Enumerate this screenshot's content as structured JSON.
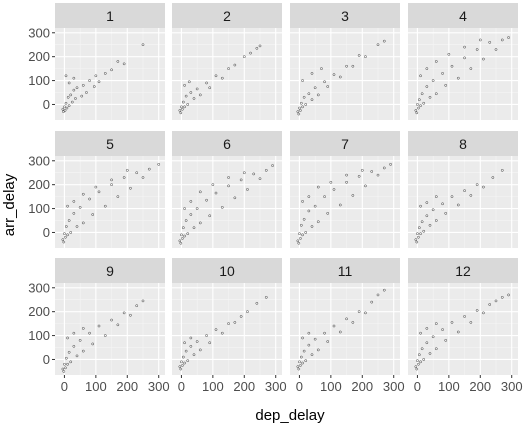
{
  "chart_data": {
    "type": "scatter",
    "facet_by": "month",
    "panels": [
      "1",
      "2",
      "3",
      "4",
      "5",
      "6",
      "7",
      "8",
      "9",
      "10",
      "11",
      "12"
    ],
    "xlabel": "dep_delay",
    "ylabel": "arr_delay",
    "xlim": [
      -30,
      320
    ],
    "ylim": [
      -65,
      320
    ],
    "x_ticks": [
      0,
      100,
      200,
      300
    ],
    "y_ticks": [
      0,
      100,
      200,
      300
    ],
    "grid": true,
    "colors": {
      "panel_background": "#ebebeb",
      "strip_background": "#d9d9d9",
      "grid_major": "#ffffff",
      "grid_minor": "#f5f5f5",
      "point": "#000000"
    },
    "series": [
      {
        "name": "1",
        "points": [
          [
            -5,
            -20
          ],
          [
            -3,
            -30
          ],
          [
            0,
            -10
          ],
          [
            2,
            -25
          ],
          [
            5,
            5
          ],
          [
            8,
            -15
          ],
          [
            12,
            30
          ],
          [
            15,
            -5
          ],
          [
            20,
            40
          ],
          [
            25,
            10
          ],
          [
            30,
            60
          ],
          [
            35,
            25
          ],
          [
            40,
            70
          ],
          [
            55,
            35
          ],
          [
            60,
            80
          ],
          [
            70,
            50
          ],
          [
            80,
            100
          ],
          [
            95,
            75
          ],
          [
            100,
            120
          ],
          [
            110,
            95
          ],
          [
            130,
            130
          ],
          [
            150,
            145
          ],
          [
            170,
            180
          ],
          [
            190,
            170
          ],
          [
            5,
            120
          ],
          [
            15,
            90
          ],
          [
            30,
            110
          ],
          [
            250,
            250
          ]
        ]
      },
      {
        "name": "2",
        "points": [
          [
            -5,
            -25
          ],
          [
            -2,
            -35
          ],
          [
            0,
            -10
          ],
          [
            3,
            -20
          ],
          [
            6,
            10
          ],
          [
            10,
            -10
          ],
          [
            15,
            35
          ],
          [
            20,
            0
          ],
          [
            30,
            50
          ],
          [
            40,
            25
          ],
          [
            50,
            65
          ],
          [
            60,
            40
          ],
          [
            80,
            90
          ],
          [
            90,
            70
          ],
          [
            110,
            120
          ],
          [
            130,
            110
          ],
          [
            150,
            150
          ],
          [
            170,
            165
          ],
          [
            200,
            200
          ],
          [
            220,
            215
          ],
          [
            240,
            235
          ],
          [
            250,
            245
          ],
          [
            10,
            80
          ],
          [
            25,
            95
          ]
        ]
      },
      {
        "name": "3",
        "points": [
          [
            -5,
            -30
          ],
          [
            -2,
            -40
          ],
          [
            0,
            -15
          ],
          [
            3,
            -25
          ],
          [
            6,
            5
          ],
          [
            10,
            -10
          ],
          [
            15,
            30
          ],
          [
            20,
            0
          ],
          [
            30,
            45
          ],
          [
            40,
            20
          ],
          [
            50,
            70
          ],
          [
            60,
            40
          ],
          [
            80,
            95
          ],
          [
            90,
            75
          ],
          [
            110,
            125
          ],
          [
            130,
            115
          ],
          [
            150,
            160
          ],
          [
            170,
            160
          ],
          [
            190,
            205
          ],
          [
            210,
            200
          ],
          [
            250,
            250
          ],
          [
            270,
            265
          ],
          [
            10,
            100
          ],
          [
            40,
            130
          ],
          [
            70,
            150
          ]
        ]
      },
      {
        "name": "4",
        "points": [
          [
            -5,
            -25
          ],
          [
            -2,
            -35
          ],
          [
            0,
            0
          ],
          [
            3,
            -15
          ],
          [
            6,
            20
          ],
          [
            10,
            -5
          ],
          [
            15,
            45
          ],
          [
            20,
            5
          ],
          [
            30,
            75
          ],
          [
            40,
            30
          ],
          [
            50,
            100
          ],
          [
            60,
            45
          ],
          [
            80,
            130
          ],
          [
            90,
            80
          ],
          [
            110,
            160
          ],
          [
            130,
            110
          ],
          [
            150,
            195
          ],
          [
            170,
            150
          ],
          [
            190,
            230
          ],
          [
            210,
            190
          ],
          [
            230,
            260
          ],
          [
            250,
            230
          ],
          [
            270,
            270
          ],
          [
            290,
            280
          ],
          [
            10,
            120
          ],
          [
            30,
            150
          ],
          [
            60,
            180
          ],
          [
            100,
            210
          ],
          [
            150,
            240
          ],
          [
            200,
            270
          ]
        ]
      },
      {
        "name": "5",
        "points": [
          [
            -5,
            -30
          ],
          [
            -2,
            -40
          ],
          [
            0,
            -5
          ],
          [
            3,
            -20
          ],
          [
            6,
            25
          ],
          [
            10,
            -10
          ],
          [
            15,
            50
          ],
          [
            20,
            0
          ],
          [
            30,
            80
          ],
          [
            40,
            25
          ],
          [
            50,
            105
          ],
          [
            60,
            40
          ],
          [
            80,
            140
          ],
          [
            90,
            75
          ],
          [
            110,
            170
          ],
          [
            130,
            110
          ],
          [
            150,
            200
          ],
          [
            170,
            150
          ],
          [
            190,
            230
          ],
          [
            210,
            185
          ],
          [
            230,
            250
          ],
          [
            250,
            230
          ],
          [
            270,
            265
          ],
          [
            300,
            285
          ],
          [
            10,
            110
          ],
          [
            30,
            130
          ],
          [
            60,
            160
          ],
          [
            100,
            190
          ],
          [
            150,
            220
          ],
          [
            200,
            260
          ]
        ]
      },
      {
        "name": "6",
        "points": [
          [
            -5,
            -35
          ],
          [
            -2,
            -45
          ],
          [
            0,
            -10
          ],
          [
            3,
            -25
          ],
          [
            6,
            20
          ],
          [
            10,
            -15
          ],
          [
            15,
            50
          ],
          [
            20,
            -5
          ],
          [
            30,
            75
          ],
          [
            40,
            20
          ],
          [
            50,
            100
          ],
          [
            60,
            40
          ],
          [
            80,
            135
          ],
          [
            90,
            70
          ],
          [
            110,
            165
          ],
          [
            130,
            105
          ],
          [
            150,
            195
          ],
          [
            170,
            145
          ],
          [
            190,
            220
          ],
          [
            210,
            180
          ],
          [
            230,
            245
          ],
          [
            250,
            225
          ],
          [
            270,
            260
          ],
          [
            290,
            280
          ],
          [
            10,
            100
          ],
          [
            30,
            130
          ],
          [
            60,
            170
          ],
          [
            100,
            200
          ],
          [
            150,
            230
          ],
          [
            200,
            250
          ]
        ]
      },
      {
        "name": "7",
        "points": [
          [
            -5,
            -35
          ],
          [
            -2,
            -45
          ],
          [
            0,
            -5
          ],
          [
            3,
            -25
          ],
          [
            6,
            30
          ],
          [
            10,
            -10
          ],
          [
            15,
            55
          ],
          [
            20,
            0
          ],
          [
            30,
            90
          ],
          [
            40,
            25
          ],
          [
            50,
            110
          ],
          [
            60,
            45
          ],
          [
            80,
            150
          ],
          [
            90,
            80
          ],
          [
            110,
            180
          ],
          [
            130,
            115
          ],
          [
            150,
            210
          ],
          [
            170,
            155
          ],
          [
            190,
            235
          ],
          [
            210,
            195
          ],
          [
            230,
            255
          ],
          [
            250,
            240
          ],
          [
            270,
            270
          ],
          [
            290,
            285
          ],
          [
            10,
            130
          ],
          [
            30,
            150
          ],
          [
            60,
            190
          ],
          [
            100,
            210
          ],
          [
            150,
            240
          ],
          [
            200,
            260
          ]
        ]
      },
      {
        "name": "8",
        "points": [
          [
            -5,
            -30
          ],
          [
            -2,
            -40
          ],
          [
            0,
            -5
          ],
          [
            3,
            -20
          ],
          [
            6,
            20
          ],
          [
            10,
            -5
          ],
          [
            15,
            45
          ],
          [
            20,
            5
          ],
          [
            30,
            70
          ],
          [
            40,
            30
          ],
          [
            50,
            95
          ],
          [
            60,
            50
          ],
          [
            80,
            120
          ],
          [
            90,
            80
          ],
          [
            110,
            150
          ],
          [
            130,
            115
          ],
          [
            150,
            175
          ],
          [
            170,
            155
          ],
          [
            190,
            200
          ],
          [
            210,
            190
          ],
          [
            240,
            230
          ],
          [
            270,
            260
          ],
          [
            10,
            110
          ],
          [
            30,
            125
          ],
          [
            60,
            150
          ]
        ]
      },
      {
        "name": "9",
        "points": [
          [
            -5,
            -40
          ],
          [
            -2,
            -50
          ],
          [
            0,
            -20
          ],
          [
            3,
            -35
          ],
          [
            6,
            5
          ],
          [
            10,
            -20
          ],
          [
            15,
            30
          ],
          [
            20,
            -10
          ],
          [
            30,
            55
          ],
          [
            40,
            15
          ],
          [
            50,
            80
          ],
          [
            60,
            35
          ],
          [
            80,
            110
          ],
          [
            90,
            65
          ],
          [
            110,
            140
          ],
          [
            130,
            100
          ],
          [
            150,
            165
          ],
          [
            170,
            145
          ],
          [
            190,
            195
          ],
          [
            210,
            185
          ],
          [
            230,
            225
          ],
          [
            250,
            245
          ],
          [
            10,
            90
          ],
          [
            30,
            110
          ],
          [
            60,
            130
          ]
        ]
      },
      {
        "name": "10",
        "points": [
          [
            -5,
            -30
          ],
          [
            -2,
            -40
          ],
          [
            0,
            -10
          ],
          [
            3,
            -25
          ],
          [
            6,
            10
          ],
          [
            10,
            -15
          ],
          [
            15,
            35
          ],
          [
            20,
            -5
          ],
          [
            30,
            55
          ],
          [
            40,
            20
          ],
          [
            50,
            75
          ],
          [
            60,
            40
          ],
          [
            80,
            100
          ],
          [
            90,
            70
          ],
          [
            110,
            125
          ],
          [
            130,
            110
          ],
          [
            150,
            150
          ],
          [
            170,
            155
          ],
          [
            190,
            180
          ],
          [
            210,
            200
          ],
          [
            240,
            235
          ],
          [
            270,
            260
          ],
          [
            10,
            70
          ],
          [
            30,
            90
          ]
        ]
      },
      {
        "name": "11",
        "points": [
          [
            -5,
            -30
          ],
          [
            -2,
            -40
          ],
          [
            0,
            -10
          ],
          [
            3,
            -25
          ],
          [
            6,
            10
          ],
          [
            10,
            -15
          ],
          [
            15,
            35
          ],
          [
            20,
            -5
          ],
          [
            30,
            60
          ],
          [
            40,
            20
          ],
          [
            50,
            85
          ],
          [
            60,
            40
          ],
          [
            80,
            110
          ],
          [
            90,
            75
          ],
          [
            110,
            140
          ],
          [
            130,
            115
          ],
          [
            150,
            170
          ],
          [
            170,
            155
          ],
          [
            190,
            200
          ],
          [
            210,
            195
          ],
          [
            230,
            240
          ],
          [
            250,
            270
          ],
          [
            270,
            290
          ],
          [
            10,
            90
          ],
          [
            30,
            110
          ]
        ]
      },
      {
        "name": "12",
        "points": [
          [
            -5,
            -30
          ],
          [
            -2,
            -40
          ],
          [
            0,
            -5
          ],
          [
            3,
            -20
          ],
          [
            6,
            20
          ],
          [
            10,
            -10
          ],
          [
            15,
            45
          ],
          [
            20,
            0
          ],
          [
            30,
            70
          ],
          [
            40,
            25
          ],
          [
            50,
            95
          ],
          [
            60,
            45
          ],
          [
            80,
            125
          ],
          [
            90,
            80
          ],
          [
            110,
            155
          ],
          [
            130,
            115
          ],
          [
            150,
            180
          ],
          [
            170,
            155
          ],
          [
            190,
            205
          ],
          [
            210,
            195
          ],
          [
            230,
            230
          ],
          [
            250,
            245
          ],
          [
            270,
            260
          ],
          [
            290,
            270
          ],
          [
            10,
            110
          ],
          [
            30,
            130
          ],
          [
            60,
            150
          ]
        ]
      }
    ]
  }
}
